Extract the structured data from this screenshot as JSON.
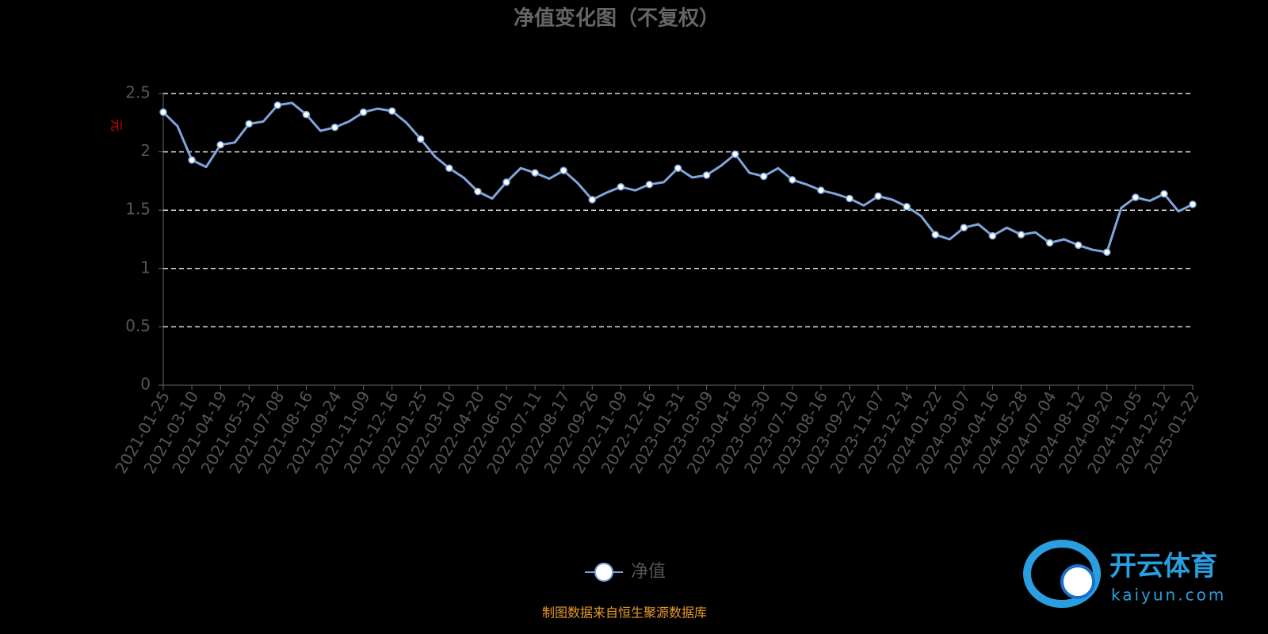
{
  "chart_data": {
    "type": "line",
    "title": "净值变化图（不复权）",
    "y_axis_label": "元",
    "source": "制图数据来自恒生聚源数据库",
    "watermark": {
      "name": "开云体育",
      "url": "kaiyun.com"
    },
    "categories": [
      "2021-01-25",
      null,
      "2021-03-10",
      null,
      "2021-04-19",
      null,
      "2021-05-31",
      null,
      "2021-07-08",
      null,
      "2021-08-16",
      null,
      "2021-09-24",
      null,
      "2021-11-09",
      null,
      "2021-12-16",
      null,
      "2022-01-25",
      null,
      "2022-03-10",
      null,
      "2022-04-20",
      null,
      "2022-06-01",
      null,
      "2022-07-11",
      null,
      "2022-08-17",
      null,
      "2022-09-26",
      null,
      "2022-11-09",
      null,
      "2022-12-16",
      null,
      "2023-01-31",
      null,
      "2023-03-09",
      null,
      "2023-04-18",
      null,
      "2023-05-30",
      null,
      "2023-07-10",
      null,
      "2023-08-16",
      null,
      "2023-09-22",
      null,
      "2023-11-07",
      null,
      "2023-12-14",
      null,
      "2024-01-22",
      null,
      "2024-03-07",
      null,
      "2024-04-16",
      null,
      "2024-05-28",
      null,
      "2024-07-04",
      null,
      "2024-08-12",
      null,
      "2024-09-20",
      null,
      "2024-11-05",
      null,
      "2024-12-12",
      null,
      "2025-01-22"
    ],
    "series": [
      {
        "name": "净值",
        "color": "#7ea6dc",
        "values": [
          2.34,
          2.22,
          1.93,
          1.87,
          2.06,
          2.08,
          2.24,
          2.26,
          2.4,
          2.42,
          2.32,
          2.18,
          2.21,
          2.26,
          2.34,
          2.37,
          2.35,
          2.25,
          2.11,
          1.96,
          1.86,
          1.78,
          1.66,
          1.6,
          1.74,
          1.86,
          1.82,
          1.77,
          1.84,
          1.73,
          1.59,
          1.65,
          1.7,
          1.67,
          1.72,
          1.74,
          1.86,
          1.78,
          1.8,
          1.88,
          1.98,
          1.82,
          1.79,
          1.86,
          1.76,
          1.72,
          1.67,
          1.64,
          1.6,
          1.54,
          1.62,
          1.59,
          1.53,
          1.45,
          1.29,
          1.25,
          1.35,
          1.38,
          1.28,
          1.35,
          1.29,
          1.31,
          1.22,
          1.25,
          1.2,
          1.16,
          1.14,
          1.52,
          1.61,
          1.58,
          1.64,
          1.49,
          1.55
        ]
      }
    ],
    "ylim": [
      0,
      2.5
    ],
    "yticks": [
      0,
      0.5,
      1,
      1.5,
      2,
      2.5
    ],
    "grid": true,
    "legend": "bottom"
  }
}
